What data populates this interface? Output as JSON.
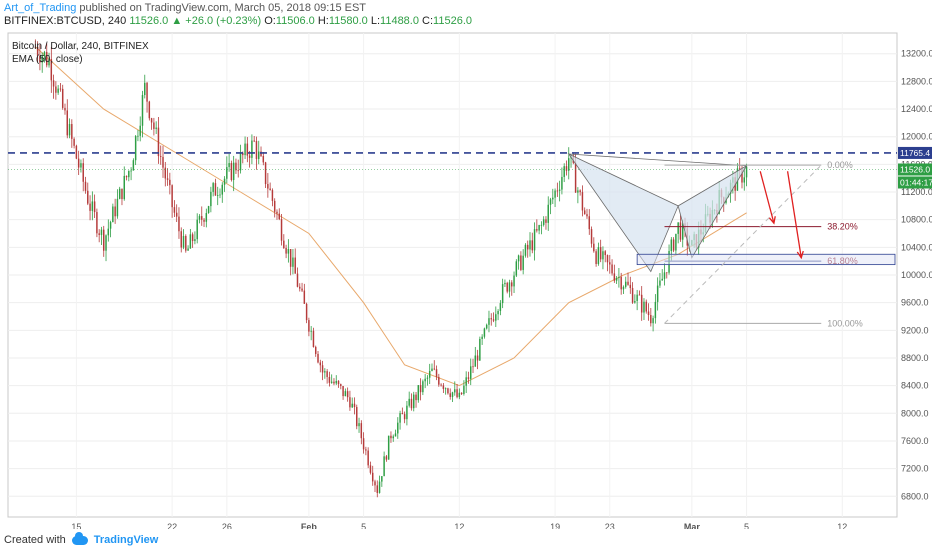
{
  "header": {
    "author": "Art_of_Trading",
    "published_text": "published on TradingView.com, March 05, 2018 09:15 EST",
    "symbol": "BITFINEX:BTCUSD, 240",
    "last": "11526.0",
    "change": "▲ +26.0 (+0.23%)",
    "o_label": "O:",
    "o": "11506.0",
    "h_label": "H:",
    "h": "11580.0",
    "l_label": "L:",
    "l": "11488.0",
    "c_label": "C:",
    "c": "11526.0"
  },
  "legend": {
    "title": "Bitcoin / Dollar, 240, BITFINEX",
    "ema": "EMA (50, close)"
  },
  "footer": {
    "created_with": "Created with",
    "brand": "TradingView"
  },
  "colors": {
    "up": "#2e9e44",
    "down": "#b53a3a",
    "ema": "#e8a86b",
    "resistance": "#2c3f8f",
    "fib": "#8b1a2e",
    "pattern_fill": "#d6e2ef",
    "arrow": "#e02020",
    "axis_text": "#555555"
  },
  "chart_data": {
    "type": "candlestick",
    "title": "Bitcoin / Dollar, 240, BITFINEX",
    "ylim": [
      6500,
      13500
    ],
    "y_ticks": [
      6800,
      7200,
      7600,
      8000,
      8400,
      8800,
      9200,
      9600,
      10000,
      10400,
      10800,
      11200,
      11600,
      12000,
      12400,
      12800,
      13200
    ],
    "x_labels": [
      "15",
      "22",
      "26",
      "Feb",
      "5",
      "12",
      "19",
      "23",
      "Mar",
      "5",
      "12"
    ],
    "price_path": [
      {
        "d": "Jan 12",
        "p": 13300
      },
      {
        "d": "Jan 13",
        "p": 13100
      },
      {
        "d": "Jan 16",
        "p": 11000
      },
      {
        "d": "Jan 17",
        "p": 10500
      },
      {
        "d": "Jan 19",
        "p": 11600
      },
      {
        "d": "Jan 20",
        "p": 12700
      },
      {
        "d": "Jan 22",
        "p": 11000
      },
      {
        "d": "Jan 23",
        "p": 10300
      },
      {
        "d": "Jan 25",
        "p": 11200
      },
      {
        "d": "Jan 28",
        "p": 11900
      },
      {
        "d": "Jan 29",
        "p": 11300
      },
      {
        "d": "Jan 31",
        "p": 10000
      },
      {
        "d": "Feb 2",
        "p": 8600
      },
      {
        "d": "Feb 4",
        "p": 8200
      },
      {
        "d": "Feb 6",
        "p": 6900
      },
      {
        "d": "Feb 7",
        "p": 7700
      },
      {
        "d": "Feb 10",
        "p": 8600
      },
      {
        "d": "Feb 12",
        "p": 8200
      },
      {
        "d": "Feb 15",
        "p": 9700
      },
      {
        "d": "Feb 18",
        "p": 10700
      },
      {
        "d": "Feb 20",
        "p": 11700
      },
      {
        "d": "Feb 22",
        "p": 10300
      },
      {
        "d": "Feb 24",
        "p": 9900
      },
      {
        "d": "Feb 26",
        "p": 9400
      },
      {
        "d": "Feb 28",
        "p": 10700
      },
      {
        "d": "Mar 1",
        "p": 10400
      },
      {
        "d": "Mar 3",
        "p": 11100
      },
      {
        "d": "Mar 5",
        "p": 11526
      }
    ],
    "ema_path": [
      {
        "d": "Jan 12",
        "p": 13300
      },
      {
        "d": "Jan 17",
        "p": 12400
      },
      {
        "d": "Jan 22",
        "p": 11800
      },
      {
        "d": "Jan 27",
        "p": 11200
      },
      {
        "d": "Feb 1",
        "p": 10600
      },
      {
        "d": "Feb 5",
        "p": 9600
      },
      {
        "d": "Feb 8",
        "p": 8700
      },
      {
        "d": "Feb 12",
        "p": 8400
      },
      {
        "d": "Feb 16",
        "p": 8800
      },
      {
        "d": "Feb 20",
        "p": 9600
      },
      {
        "d": "Feb 24",
        "p": 10000
      },
      {
        "d": "Feb 28",
        "p": 10300
      },
      {
        "d": "Mar 5",
        "p": 10900
      }
    ],
    "resistance_price": 11765.4,
    "last_price": "11526.0",
    "countdown": "01:44:17",
    "fib_levels": [
      {
        "label": "0.00%",
        "price": 11590
      },
      {
        "label": "38.20%",
        "price": 10700
      },
      {
        "label": "61.80%",
        "price": 10200
      },
      {
        "label": "100.00%",
        "price": 9300
      }
    ],
    "price_labels": {
      "resistance": "11765.4",
      "last": "11526.0",
      "countdown": "01:44:17"
    },
    "pattern_points": [
      {
        "d": "Feb 20",
        "p": 11750
      },
      {
        "d": "Feb 26",
        "p": 10050
      },
      {
        "d": "Feb 28",
        "p": 11000
      },
      {
        "d": "Mar 1",
        "p": 10250
      },
      {
        "d": "Mar 5",
        "p": 11580
      }
    ],
    "arrows": [
      {
        "from": {
          "d": "Mar 6",
          "p": 11500
        },
        "to": {
          "d": "Mar 7",
          "p": 10750
        }
      },
      {
        "from": {
          "d": "Mar 8",
          "p": 11500
        },
        "to": {
          "d": "Mar 9",
          "p": 10250
        }
      }
    ]
  }
}
